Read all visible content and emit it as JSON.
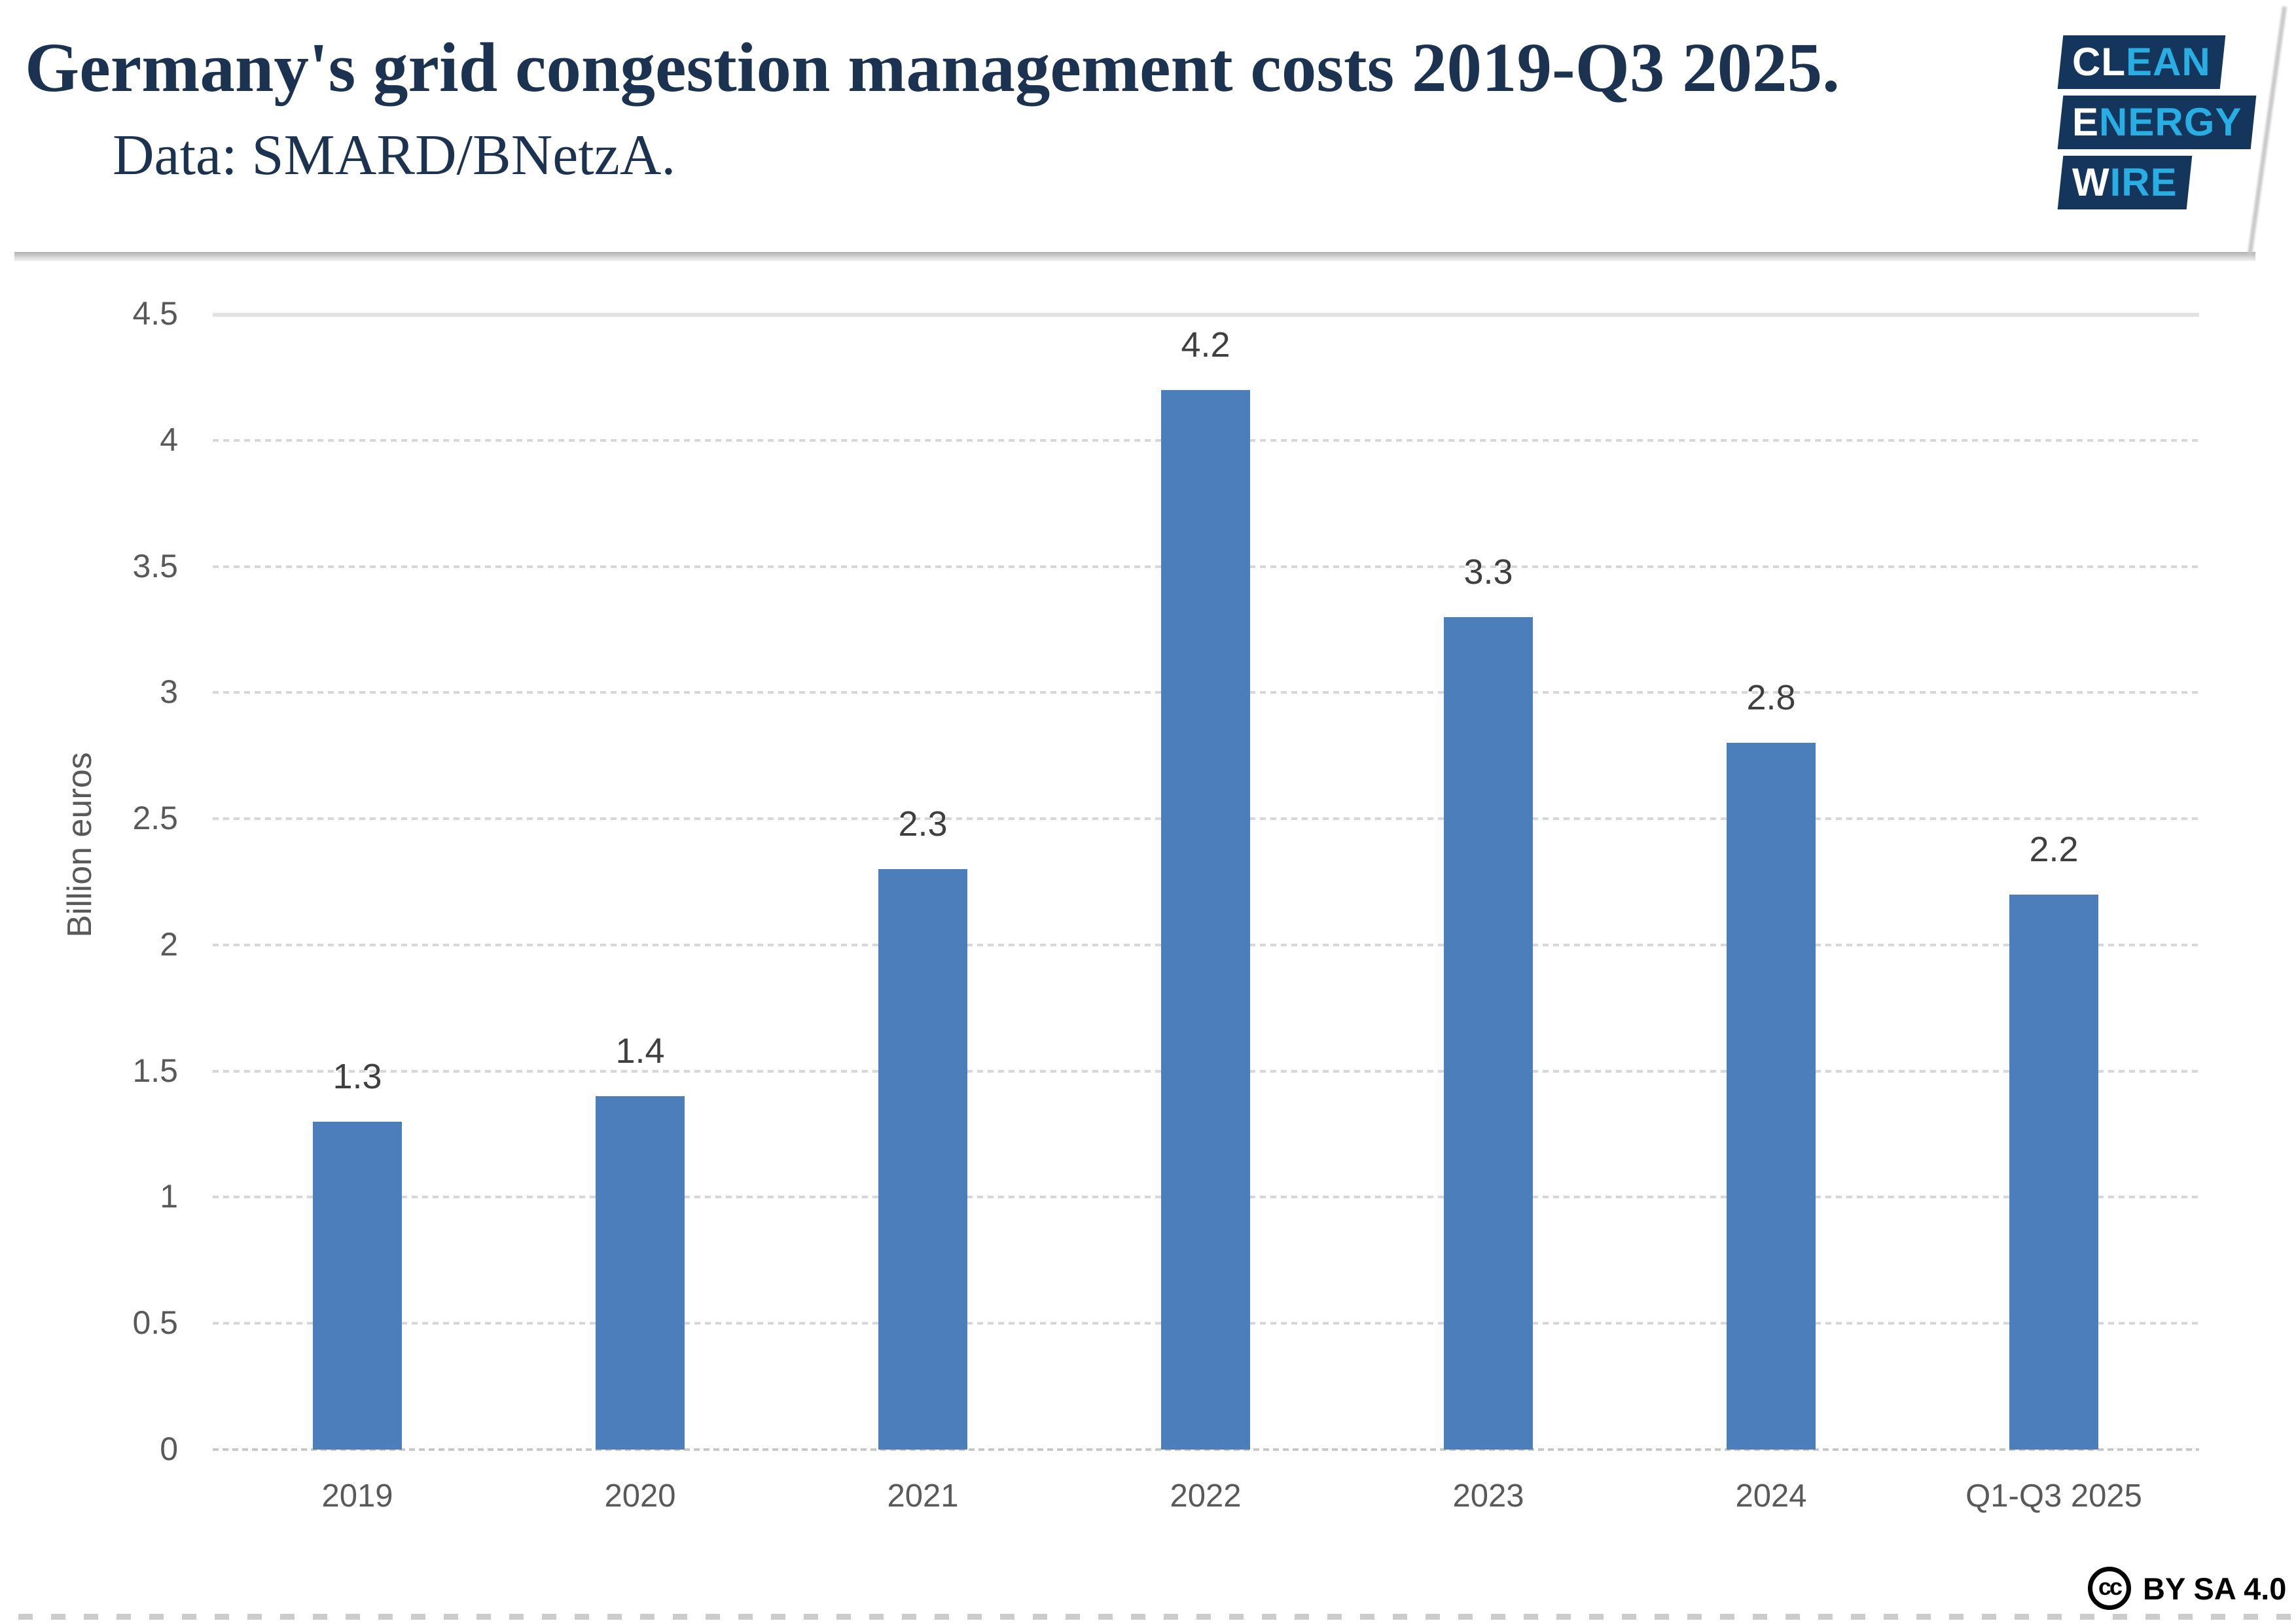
{
  "header": {
    "title": "Germany's grid congestion management costs 2019-Q3 2025.",
    "subtitle": "Data: SMARD/BNetzA."
  },
  "logo": {
    "rows": [
      {
        "white": "CL",
        "blue": "EAN"
      },
      {
        "white": "E",
        "blue": "NERGY"
      },
      {
        "white": "W",
        "blue": "IRE"
      }
    ]
  },
  "chart_data": {
    "type": "bar",
    "categories": [
      "2019",
      "2020",
      "2021",
      "2022",
      "2023",
      "2024",
      "Q1-Q3 2025"
    ],
    "values": [
      1.3,
      1.4,
      2.3,
      4.2,
      3.3,
      2.8,
      2.2
    ],
    "value_labels": [
      "1.3",
      "1.4",
      "2.3",
      "4.2",
      "3.3",
      "2.8",
      "2.2"
    ],
    "title": "Germany's grid congestion management costs 2019-Q3 2025.",
    "xlabel": "",
    "ylabel": "Billion euros",
    "ylim": [
      0,
      4.5
    ],
    "yticks": [
      0,
      0.5,
      1,
      1.5,
      2,
      2.5,
      3,
      3.5,
      4,
      4.5
    ],
    "ytick_labels": [
      "0",
      "0.5",
      "1",
      "1.5",
      "2",
      "2.5",
      "3",
      "3.5",
      "4",
      "4.5"
    ],
    "bar_color": "#4c7ebb",
    "grid": "horizontal dashed gridlines",
    "legend": "none"
  },
  "footer": {
    "cc_icon": "cc",
    "license": "BY SA 4.0"
  },
  "colors": {
    "title_navy": "#1b3250",
    "logo_navy": "#14365c",
    "logo_blue": "#29aee3",
    "bar_blue": "#4c7ebb",
    "axis_gray": "#595959",
    "value_label_gray": "#3f3f3f",
    "grid_gray": "#d7d7d7"
  }
}
